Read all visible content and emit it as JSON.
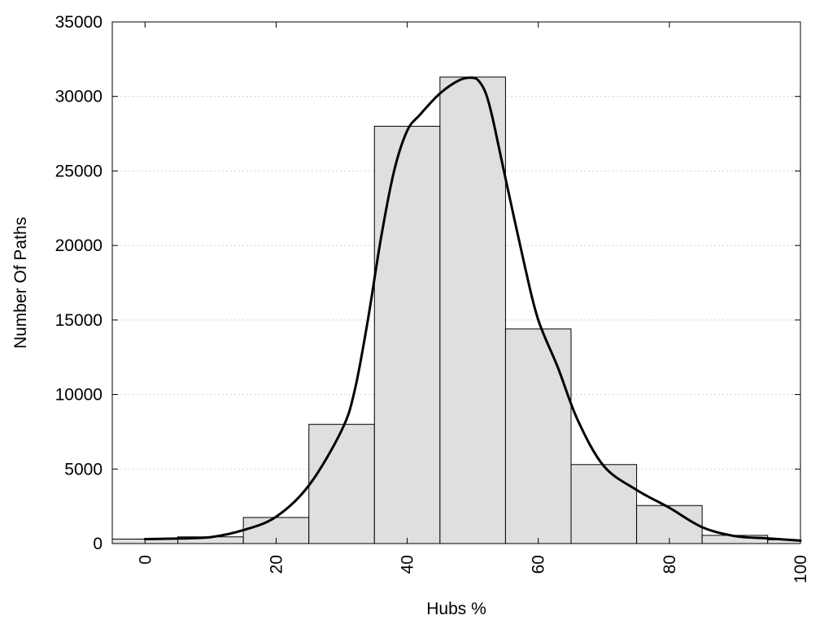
{
  "chart_data": {
    "type": "bar",
    "title": "",
    "xlabel": "Hubs %",
    "ylabel": "Number Of Paths",
    "xlim": [
      -5,
      100
    ],
    "ylim": [
      0,
      35000
    ],
    "grid": true,
    "grid_axis": "y",
    "bar_color": "#dfdfdf",
    "curve_color": "#000000",
    "x_ticks": [
      0,
      20,
      40,
      60,
      80,
      100
    ],
    "y_ticks": [
      0,
      5000,
      10000,
      15000,
      20000,
      25000,
      30000,
      35000
    ],
    "bins": [
      {
        "from": -5,
        "to": 5,
        "value": 300
      },
      {
        "from": 5,
        "to": 15,
        "value": 450
      },
      {
        "from": 15,
        "to": 25,
        "value": 1750
      },
      {
        "from": 25,
        "to": 35,
        "value": 8000
      },
      {
        "from": 35,
        "to": 45,
        "value": 28000
      },
      {
        "from": 45,
        "to": 55,
        "value": 31300
      },
      {
        "from": 55,
        "to": 65,
        "value": 14400
      },
      {
        "from": 65,
        "to": 75,
        "value": 5300
      },
      {
        "from": 75,
        "to": 85,
        "value": 2550
      },
      {
        "from": 85,
        "to": 95,
        "value": 550
      },
      {
        "from": 95,
        "to": 100,
        "value": 250
      }
    ],
    "series": [
      {
        "type": "line",
        "x": [
          0,
          5,
          10,
          15,
          20,
          25,
          30,
          32,
          34,
          36,
          38,
          40,
          42,
          45,
          48,
          50,
          51,
          52,
          53,
          55,
          58,
          60,
          63,
          66,
          70,
          75,
          80,
          85,
          90,
          95,
          100
        ],
        "values": [
          300,
          340,
          430,
          900,
          1800,
          3900,
          7600,
          10300,
          15000,
          20500,
          25000,
          27700,
          28800,
          30200,
          31100,
          31250,
          31000,
          30200,
          28600,
          24500,
          18500,
          15000,
          11800,
          8300,
          5200,
          3600,
          2400,
          1100,
          500,
          350,
          200
        ]
      }
    ]
  }
}
